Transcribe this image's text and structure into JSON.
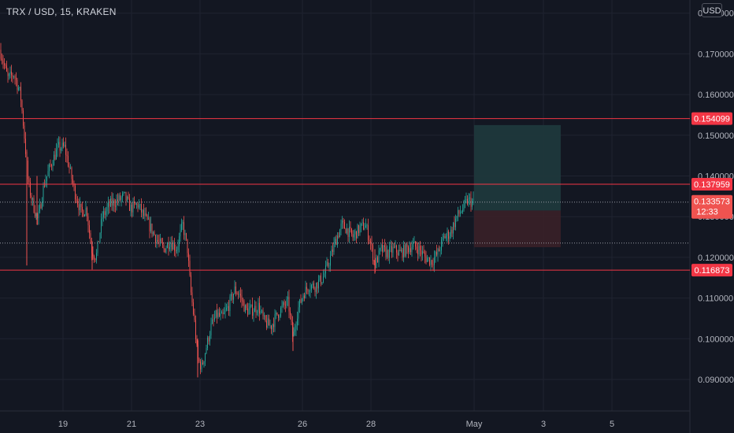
{
  "header": {
    "title": "TRX / USD, 15, KRAKEN",
    "currency_button": "USD"
  },
  "chart_data": {
    "type": "candlestick",
    "title": "TRX / USD, 15, KRAKEN",
    "ylim": [
      0.085,
      0.181
    ],
    "y_ticks": [
      0.09,
      0.1,
      0.11,
      0.12,
      0.13,
      0.14,
      0.15,
      0.16,
      0.17,
      0.18
    ],
    "y_tick_labels": [
      "0.090000",
      "0.100000",
      "0.110000",
      "0.120000",
      "0.130000",
      "0.140000",
      "0.150000",
      "0.160000",
      "0.170000",
      "0.180000"
    ],
    "x_ticks": [
      "19",
      "21",
      "23",
      "26",
      "28",
      "May",
      "3",
      "5"
    ],
    "price_path": [
      [
        0,
        0.171
      ],
      [
        10,
        0.164
      ],
      [
        18,
        0.165
      ],
      [
        26,
        0.16
      ],
      [
        30,
        0.152
      ],
      [
        36,
        0.138
      ],
      [
        42,
        0.133
      ],
      [
        48,
        0.129
      ],
      [
        56,
        0.138
      ],
      [
        65,
        0.143
      ],
      [
        74,
        0.147
      ],
      [
        82,
        0.147
      ],
      [
        88,
        0.142
      ],
      [
        95,
        0.136
      ],
      [
        103,
        0.131
      ],
      [
        110,
        0.132
      ],
      [
        116,
        0.122
      ],
      [
        122,
        0.12
      ],
      [
        130,
        0.13
      ],
      [
        140,
        0.133
      ],
      [
        150,
        0.134
      ],
      [
        158,
        0.135
      ],
      [
        166,
        0.132
      ],
      [
        175,
        0.133
      ],
      [
        183,
        0.13
      ],
      [
        192,
        0.127
      ],
      [
        200,
        0.124
      ],
      [
        208,
        0.122
      ],
      [
        216,
        0.124
      ],
      [
        224,
        0.122
      ],
      [
        232,
        0.128
      ],
      [
        238,
        0.122
      ],
      [
        242,
        0.112
      ],
      [
        247,
        0.104
      ],
      [
        251,
        0.095
      ],
      [
        256,
        0.093
      ],
      [
        262,
        0.098
      ],
      [
        268,
        0.103
      ],
      [
        275,
        0.106
      ],
      [
        282,
        0.105
      ],
      [
        290,
        0.108
      ],
      [
        298,
        0.112
      ],
      [
        304,
        0.111
      ],
      [
        312,
        0.107
      ],
      [
        320,
        0.107
      ],
      [
        328,
        0.108
      ],
      [
        336,
        0.104
      ],
      [
        344,
        0.103
      ],
      [
        352,
        0.106
      ],
      [
        360,
        0.108
      ],
      [
        366,
        0.109
      ],
      [
        372,
        0.1
      ],
      [
        378,
        0.107
      ],
      [
        385,
        0.111
      ],
      [
        392,
        0.113
      ],
      [
        400,
        0.113
      ],
      [
        410,
        0.115
      ],
      [
        418,
        0.119
      ],
      [
        426,
        0.124
      ],
      [
        434,
        0.128
      ],
      [
        440,
        0.127
      ],
      [
        448,
        0.125
      ],
      [
        456,
        0.127
      ],
      [
        464,
        0.128
      ],
      [
        470,
        0.124
      ],
      [
        476,
        0.118
      ],
      [
        484,
        0.122
      ],
      [
        492,
        0.121
      ],
      [
        500,
        0.122
      ],
      [
        508,
        0.121
      ],
      [
        516,
        0.122
      ],
      [
        524,
        0.123
      ],
      [
        532,
        0.122
      ],
      [
        540,
        0.12
      ],
      [
        548,
        0.119
      ],
      [
        556,
        0.121
      ],
      [
        564,
        0.125
      ],
      [
        572,
        0.126
      ],
      [
        580,
        0.13
      ],
      [
        588,
        0.132
      ],
      [
        594,
        0.134
      ],
      [
        601,
        0.1335
      ]
    ],
    "last_price": "0.133573",
    "countdown": "12:33",
    "horizontal_levels": [
      {
        "value": 0.154099,
        "label": "0.154099"
      },
      {
        "value": 0.137959,
        "label": "0.137959"
      },
      {
        "value": 0.116873,
        "label": "0.116873"
      }
    ],
    "dotted_levels": [
      0.133573,
      0.1235
    ],
    "position_tool": {
      "entry": 0.1315,
      "target": 0.1525,
      "stop": 0.1225
    },
    "colors": {
      "up": "#26a69a",
      "down": "#ef5350",
      "level": "#f23645",
      "target_zone": "#1f3a3d",
      "stop_zone": "#3a2028",
      "background": "#131722",
      "grid": "#1f2330",
      "axis_text": "#b2b5be"
    }
  }
}
